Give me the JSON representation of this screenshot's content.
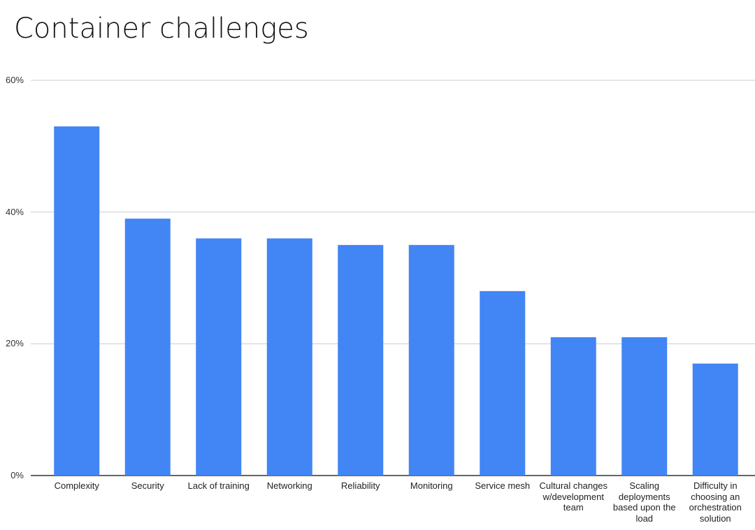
{
  "chart_data": {
    "type": "bar",
    "title": "Container challenges",
    "categories": [
      "Complexity",
      "Security",
      "Lack of training",
      "Networking",
      "Reliability",
      "Monitoring",
      "Service mesh",
      "Cultural changes w/development team",
      "Scaling deployments based upon the load",
      "Difficulty in choosing an orchestration solution"
    ],
    "values": [
      53,
      39,
      36,
      36,
      35,
      35,
      28,
      21,
      21,
      17
    ],
    "color": "#4285f4",
    "ylim": [
      0,
      60
    ],
    "yticks": [
      {
        "value": 0,
        "label": "0%"
      },
      {
        "value": 20,
        "label": "20%"
      },
      {
        "value": 40,
        "label": "40%"
      },
      {
        "value": 60,
        "label": "60%"
      }
    ],
    "grid": true
  }
}
